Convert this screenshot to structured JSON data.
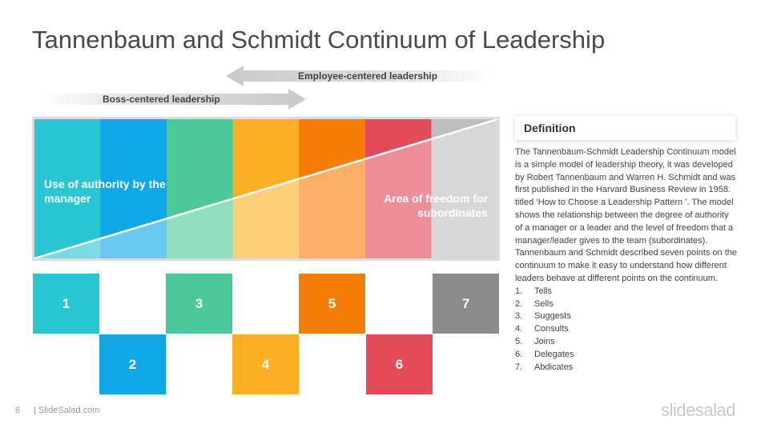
{
  "title": "Tannenbaum and Schmidt Continuum of Leadership",
  "arrows": {
    "employee_label": "Employee-centered  leadership",
    "boss_label": "Boss-centered leadership"
  },
  "chart": {
    "left_text": "Use of authority by the manager",
    "right_text": "Area of freedom for subordinates",
    "colors": [
      "#2bc6d4",
      "#10a6e8",
      "#4dc89a",
      "#fbb024",
      "#f77d0a",
      "#e44b5a",
      "#bebebe"
    ]
  },
  "steps": [
    {
      "label": "1",
      "color": "#2bc6d4"
    },
    {
      "label": "2",
      "color": "#10a6e8"
    },
    {
      "label": "3",
      "color": "#4dc89a"
    },
    {
      "label": "4",
      "color": "#fbb024"
    },
    {
      "label": "5",
      "color": "#f77d0a"
    },
    {
      "label": "6",
      "color": "#e44b5a"
    },
    {
      "label": "7",
      "color": "#8c8c8c"
    }
  ],
  "definition": {
    "title": "Definition",
    "body": "The Tannenbaum-Schmidt Leadership Continuum model is a simple model of leadership theory, it was developed by Robert Tannenbaum and Warren H. Schmidt and was first published in the Harvard Business Review in 1958. titled ‘How to Choose a Leadership Pattern ’. The model shows the relationship between the degree of authority of a manager or a leader and the level of freedom that a manager/leader gives to the team (subordinates). Tannenbaum and Schmidt described seven points on the continuum to make it easy to understand how different leaders behave at different points on the continuum.",
    "list": [
      {
        "num": "1.",
        "text": "Tells"
      },
      {
        "num": "2.",
        "text": "Sells"
      },
      {
        "num": "3.",
        "text": "Suggests"
      },
      {
        "num": "4.",
        "text": "Consults"
      },
      {
        "num": "5.",
        "text": "Joins"
      },
      {
        "num": "6.",
        "text": "Delegates"
      },
      {
        "num": "7.",
        "text": "Abdicates"
      }
    ]
  },
  "footer": {
    "page_number": "6",
    "brand": "| SlideSalad.com",
    "logo": "slidesalad"
  }
}
